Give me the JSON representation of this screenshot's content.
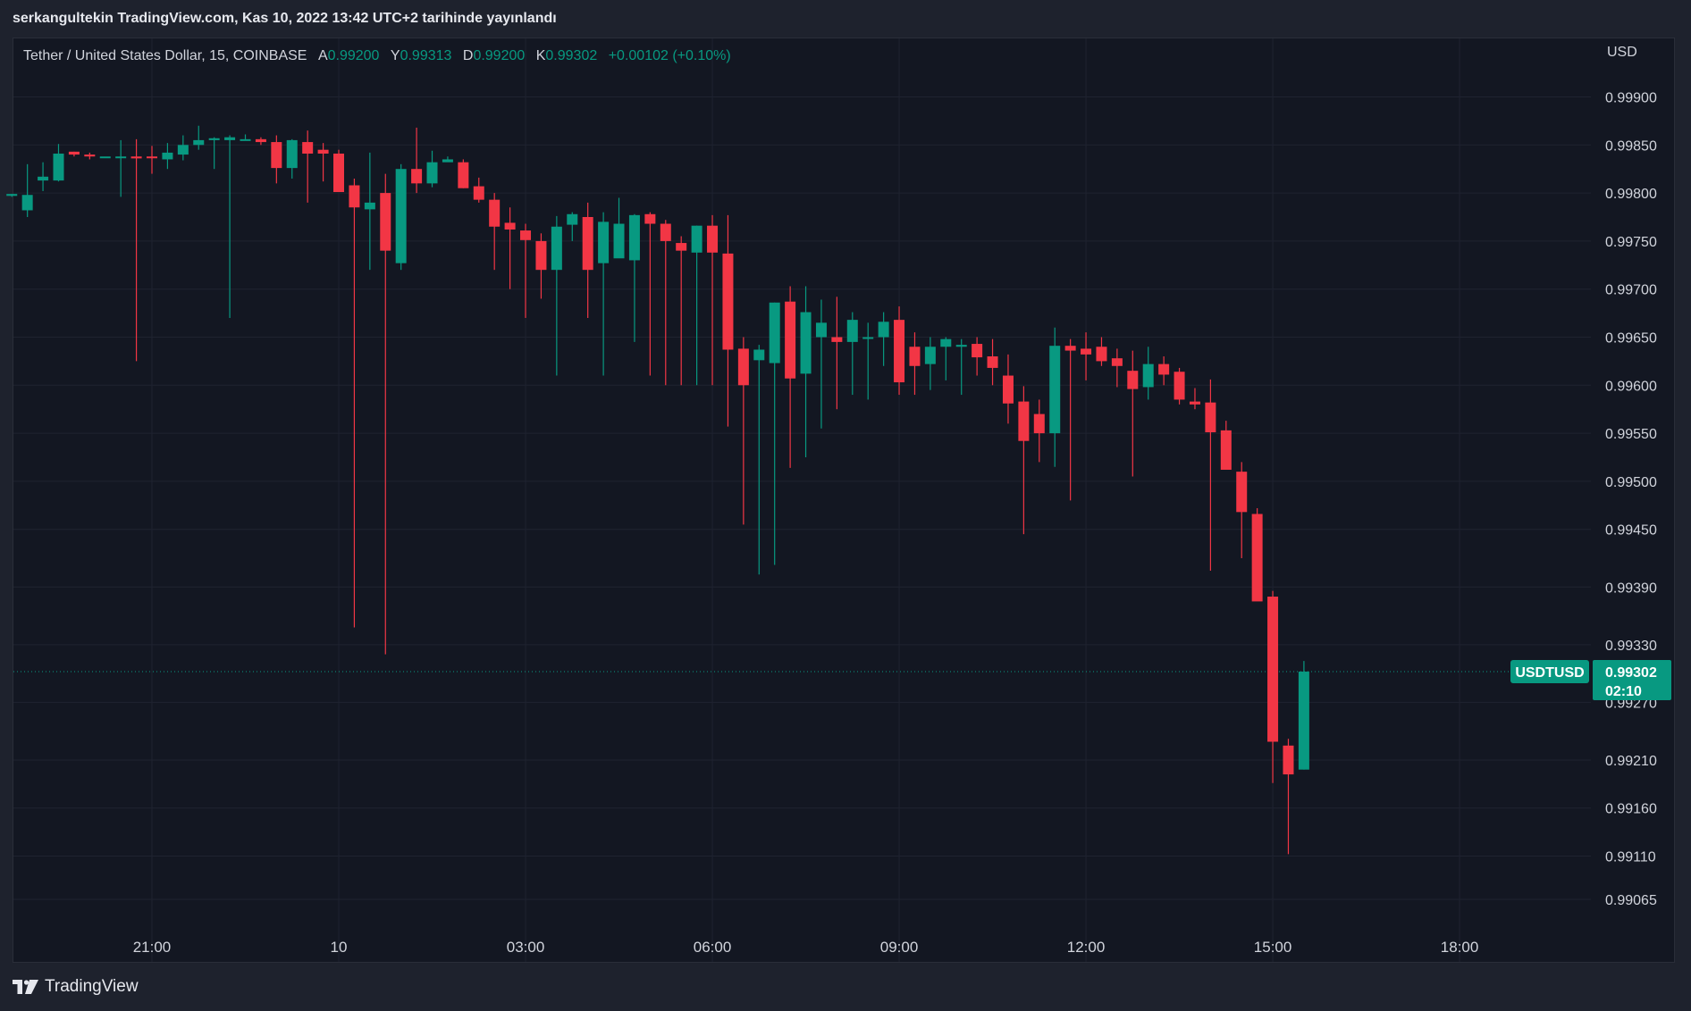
{
  "header": {
    "caption": "serkangultekin TradingView.com, Kas 10, 2022 13:42 UTC+2 tarihinde yayınlandı"
  },
  "legend": {
    "title": "Tether / United States Dollar, 15, COINBASE",
    "open_label": "A",
    "open": "0.99200",
    "high_label": "Y",
    "high": "0.99313",
    "low_label": "D",
    "low": "0.99200",
    "close_label": "K",
    "close": "0.99302",
    "change": "+0.00102 (+0.10%)"
  },
  "axis": {
    "currency": "USD",
    "y_ticks": [
      "0.99900",
      "0.99850",
      "0.99800",
      "0.99750",
      "0.99700",
      "0.99650",
      "0.99600",
      "0.99550",
      "0.99500",
      "0.99450",
      "0.99390",
      "0.99330",
      "0.99270",
      "0.99210",
      "0.99160",
      "0.99110",
      "0.99065"
    ],
    "x_ticks": [
      "21:00",
      "10",
      "03:00",
      "06:00",
      "09:00",
      "12:00",
      "15:00",
      "18:00"
    ]
  },
  "badge": {
    "symbol": "USDTUSD",
    "price": "0.99302",
    "countdown": "02:10"
  },
  "brand": {
    "name": "TradingView"
  },
  "colors": {
    "up": "#089981",
    "down": "#f23645",
    "background": "#131722",
    "grid": "#1f2330"
  },
  "chart_data": {
    "type": "candlestick",
    "interval": "15",
    "exchange": "COINBASE",
    "ylim": [
      0.9904,
      0.9993
    ],
    "y_ticks": [
      0.999,
      0.9985,
      0.998,
      0.9975,
      0.997,
      0.9965,
      0.996,
      0.9955,
      0.995,
      0.9945,
      0.9939,
      0.9933,
      0.9927,
      0.9921,
      0.9916,
      0.9911,
      0.99065
    ],
    "x_ticks": [
      {
        "label": "21:00",
        "hours": 21
      },
      {
        "label": "10",
        "hours": 24
      },
      {
        "label": "03:00",
        "hours": 27
      },
      {
        "label": "06:00",
        "hours": 30
      },
      {
        "label": "09:00",
        "hours": 33
      },
      {
        "label": "12:00",
        "hours": 36
      },
      {
        "label": "15:00",
        "hours": 39
      },
      {
        "label": "18:00",
        "hours": 42
      }
    ],
    "time_start_hours": 18.75,
    "time_step_hours": 0.25,
    "last_price": 0.99302,
    "candles": [
      [
        0.99797,
        0.99799,
        0.99796,
        0.99799
      ],
      [
        0.99782,
        0.9983,
        0.99775,
        0.99798
      ],
      [
        0.99813,
        0.99832,
        0.99802,
        0.99817
      ],
      [
        0.99813,
        0.99851,
        0.99812,
        0.99841
      ],
      [
        0.99843,
        0.99843,
        0.99838,
        0.9984
      ],
      [
        0.9984,
        0.99842,
        0.99835,
        0.99838
      ],
      [
        0.99838,
        0.99838,
        0.99838,
        0.99838
      ],
      [
        0.99838,
        0.99855,
        0.99796,
        0.99838
      ],
      [
        0.99838,
        0.99856,
        0.99625,
        0.99836
      ],
      [
        0.99838,
        0.99849,
        0.9982,
        0.99837
      ],
      [
        0.99835,
        0.99852,
        0.99825,
        0.99842
      ],
      [
        0.9984,
        0.9986,
        0.99834,
        0.9985
      ],
      [
        0.9985,
        0.9987,
        0.99845,
        0.99855
      ],
      [
        0.99855,
        0.99858,
        0.99825,
        0.99857
      ],
      [
        0.99855,
        0.9986,
        0.9967,
        0.99858
      ],
      [
        0.99856,
        0.99861,
        0.99855,
        0.99856
      ],
      [
        0.99856,
        0.99858,
        0.9985,
        0.99853
      ],
      [
        0.99853,
        0.9986,
        0.9981,
        0.99826
      ],
      [
        0.99826,
        0.99856,
        0.99815,
        0.99855
      ],
      [
        0.99853,
        0.99865,
        0.9979,
        0.99841
      ],
      [
        0.99845,
        0.99852,
        0.99812,
        0.99841
      ],
      [
        0.99841,
        0.99845,
        0.99806,
        0.99801
      ],
      [
        0.99808,
        0.99815,
        0.99348,
        0.99785
      ],
      [
        0.99783,
        0.99842,
        0.9972,
        0.9979
      ],
      [
        0.998,
        0.9982,
        0.9932,
        0.9974
      ],
      [
        0.99727,
        0.9983,
        0.9972,
        0.99825
      ],
      [
        0.99825,
        0.99868,
        0.998,
        0.9981
      ],
      [
        0.9981,
        0.99844,
        0.99806,
        0.99832
      ],
      [
        0.99832,
        0.99838,
        0.99833,
        0.99835
      ],
      [
        0.99832,
        0.99835,
        0.99805,
        0.99805
      ],
      [
        0.99807,
        0.99816,
        0.9979,
        0.99793
      ],
      [
        0.99793,
        0.998,
        0.9972,
        0.99765
      ],
      [
        0.99769,
        0.99785,
        0.997,
        0.99762
      ],
      [
        0.99761,
        0.99768,
        0.9967,
        0.99751
      ],
      [
        0.9975,
        0.99758,
        0.9969,
        0.9972
      ],
      [
        0.9972,
        0.99776,
        0.9961,
        0.99765
      ],
      [
        0.99767,
        0.9978,
        0.9975,
        0.99778
      ],
      [
        0.99775,
        0.9979,
        0.9967,
        0.9972
      ],
      [
        0.99727,
        0.9978,
        0.9961,
        0.9977
      ],
      [
        0.99732,
        0.99795,
        0.99735,
        0.99768
      ],
      [
        0.9973,
        0.99778,
        0.99645,
        0.99777
      ],
      [
        0.99778,
        0.9978,
        0.9961,
        0.99768
      ],
      [
        0.99768,
        0.99772,
        0.996,
        0.9975
      ],
      [
        0.99748,
        0.99755,
        0.996,
        0.9974
      ],
      [
        0.99738,
        0.99766,
        0.996,
        0.99766
      ],
      [
        0.99766,
        0.99777,
        0.996,
        0.99738
      ],
      [
        0.99737,
        0.99777,
        0.99557,
        0.99637
      ],
      [
        0.99638,
        0.9965,
        0.99455,
        0.996
      ],
      [
        0.99626,
        0.99642,
        0.99403,
        0.99637
      ],
      [
        0.99623,
        0.99686,
        0.99413,
        0.99686
      ],
      [
        0.99687,
        0.99703,
        0.99514,
        0.99607
      ],
      [
        0.99612,
        0.99703,
        0.99525,
        0.99676
      ],
      [
        0.9965,
        0.99689,
        0.99555,
        0.99665
      ],
      [
        0.9965,
        0.99692,
        0.99575,
        0.99645
      ],
      [
        0.99645,
        0.99676,
        0.9959,
        0.99668
      ],
      [
        0.9965,
        0.99665,
        0.99585,
        0.9965
      ],
      [
        0.9965,
        0.99676,
        0.9962,
        0.99666
      ],
      [
        0.99668,
        0.99682,
        0.9959,
        0.99603
      ],
      [
        0.9964,
        0.99655,
        0.9959,
        0.9962
      ],
      [
        0.99622,
        0.9965,
        0.99595,
        0.9964
      ],
      [
        0.9964,
        0.9965,
        0.99605,
        0.99648
      ],
      [
        0.9964,
        0.99648,
        0.9959,
        0.99642
      ],
      [
        0.99643,
        0.9965,
        0.9961,
        0.99629
      ],
      [
        0.9963,
        0.99648,
        0.996,
        0.99618
      ],
      [
        0.9961,
        0.99632,
        0.9956,
        0.99581
      ],
      [
        0.99583,
        0.99599,
        0.99445,
        0.99542
      ],
      [
        0.9957,
        0.99585,
        0.9952,
        0.9955
      ],
      [
        0.9955,
        0.9966,
        0.99515,
        0.99641
      ],
      [
        0.99641,
        0.99648,
        0.9948,
        0.99636
      ],
      [
        0.99638,
        0.99655,
        0.99605,
        0.99632
      ],
      [
        0.9964,
        0.9965,
        0.9962,
        0.99625
      ],
      [
        0.99628,
        0.99638,
        0.99598,
        0.9962
      ],
      [
        0.99615,
        0.99636,
        0.99505,
        0.99596
      ],
      [
        0.99598,
        0.9964,
        0.99585,
        0.99622
      ],
      [
        0.99622,
        0.9963,
        0.996,
        0.99611
      ],
      [
        0.99614,
        0.99618,
        0.9958,
        0.99585
      ],
      [
        0.99583,
        0.99597,
        0.99575,
        0.9958
      ],
      [
        0.99582,
        0.99606,
        0.99407,
        0.99551
      ],
      [
        0.99553,
        0.99563,
        0.9952,
        0.99512
      ],
      [
        0.9951,
        0.9952,
        0.9942,
        0.99468
      ],
      [
        0.99466,
        0.99472,
        0.99383,
        0.99375
      ],
      [
        0.9938,
        0.99386,
        0.99186,
        0.99229
      ],
      [
        0.99225,
        0.99232,
        0.99112,
        0.99195
      ],
      [
        0.992,
        0.99313,
        0.992,
        0.99302
      ]
    ]
  }
}
